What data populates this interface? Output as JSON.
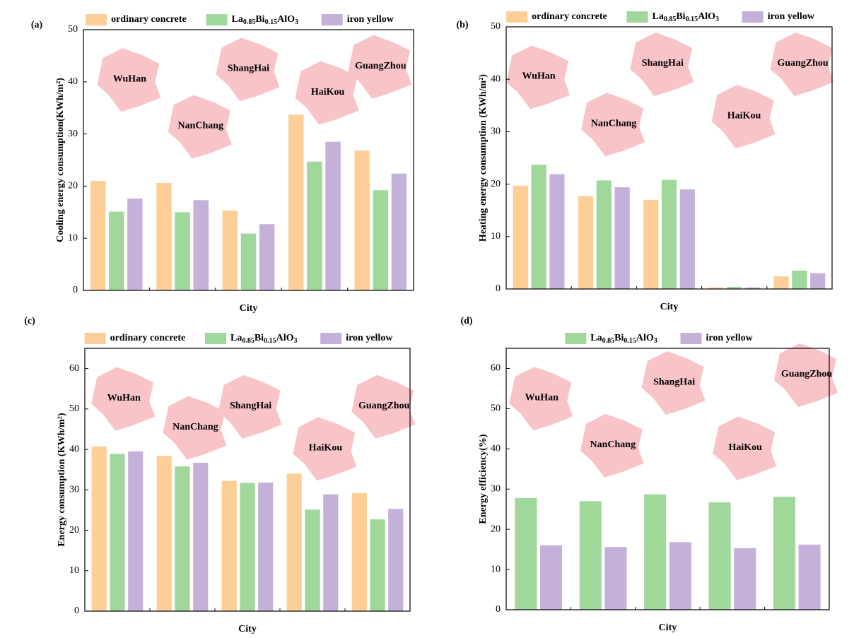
{
  "chart_data": [
    {
      "type": "bar",
      "panel": "(a)",
      "ylabel": "Cooling energy consumption(KWh/m²)",
      "xlabel": "City",
      "categories": [
        null,
        null,
        null,
        null,
        null
      ],
      "annotations": [
        "WuHan",
        "NanChang",
        "ShangHai",
        "HaiKou",
        "GuangZhou"
      ],
      "series": [
        {
          "name": "ordinary concrete",
          "color": "#fdcf97",
          "values": [
            21.0,
            20.6,
            15.3,
            33.7,
            26.8
          ]
        },
        {
          "name": "La0.85Bi0.15AlO3",
          "color": "#9fd89a",
          "values": [
            15.1,
            15.0,
            10.9,
            24.7,
            19.2
          ]
        },
        {
          "name": "iron yellow",
          "color": "#c4b0d8",
          "values": [
            17.6,
            17.3,
            12.7,
            28.5,
            22.4
          ]
        }
      ],
      "ylim": [
        0,
        50
      ],
      "yticks": [
        0,
        10,
        20,
        30,
        40,
        50
      ]
    },
    {
      "type": "bar",
      "panel": "(b)",
      "ylabel": "Heating energy consumption (KWh/m²)",
      "xlabel": "City",
      "categories": [
        null,
        null,
        null,
        null,
        null
      ],
      "annotations": [
        "WuHan",
        "NanChang",
        "ShangHai",
        "HaiKou",
        "GuangZhou"
      ],
      "series": [
        {
          "name": "ordinary concrete",
          "color": "#fdcf97",
          "values": [
            19.7,
            17.7,
            17.0,
            0.3,
            2.4
          ]
        },
        {
          "name": "La0.85Bi0.15AlO3",
          "color": "#9fd89a",
          "values": [
            23.7,
            20.7,
            20.8,
            0.4,
            3.5
          ]
        },
        {
          "name": "iron yellow",
          "color": "#c4b0d8",
          "values": [
            21.9,
            19.4,
            19.0,
            0.3,
            3.0
          ]
        }
      ],
      "ylim": [
        0,
        50
      ],
      "yticks": [
        0,
        10,
        20,
        30,
        40,
        50
      ]
    },
    {
      "type": "bar",
      "panel": "(c)",
      "ylabel": "Energy consumption (KWh/m²)",
      "xlabel": "City",
      "categories": [
        null,
        null,
        null,
        null,
        null
      ],
      "annotations": [
        "WuHan",
        "NanChang",
        "ShangHai",
        "HaiKou",
        "GuangZhou"
      ],
      "series": [
        {
          "name": "ordinary concrete",
          "color": "#fdcf97",
          "values": [
            40.7,
            38.4,
            32.2,
            34.0,
            29.2
          ]
        },
        {
          "name": "La0.85Bi0.15AlO3",
          "color": "#9fd89a",
          "values": [
            38.9,
            35.8,
            31.7,
            25.1,
            22.7
          ]
        },
        {
          "name": "iron yellow",
          "color": "#c4b0d8",
          "values": [
            39.5,
            36.7,
            31.8,
            28.9,
            25.3
          ]
        }
      ],
      "ylim": [
        0,
        65
      ],
      "yticks": [
        0,
        10,
        20,
        30,
        40,
        50,
        60
      ]
    },
    {
      "type": "bar",
      "panel": "(d)",
      "ylabel": "Energy efficiency(%)",
      "xlabel": "City",
      "categories": [
        null,
        null,
        null,
        null,
        null
      ],
      "annotations": [
        "WuHan",
        "NanChang",
        "ShangHai",
        "HaiKou",
        "GuangZhou"
      ],
      "series": [
        {
          "name": "La0.85Bi0.15AlO3",
          "color": "#9fd89a",
          "values": [
            27.8,
            27.0,
            28.7,
            26.7,
            28.1
          ]
        },
        {
          "name": "iron yellow",
          "color": "#c4b0d8",
          "values": [
            16.0,
            15.6,
            16.8,
            15.3,
            16.2
          ]
        }
      ],
      "ylim": [
        0,
        65
      ],
      "yticks": [
        0,
        10,
        20,
        30,
        40,
        50,
        60
      ]
    }
  ]
}
